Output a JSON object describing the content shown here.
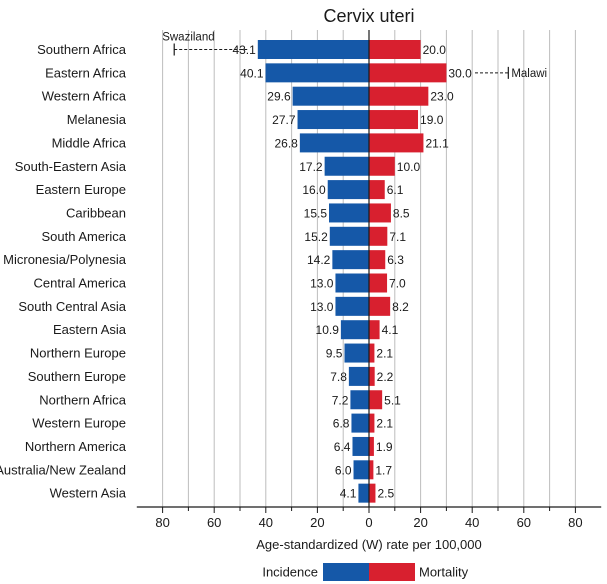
{
  "chart_data": {
    "type": "bar",
    "title": "Cervix uteri",
    "xlabel": "Age-standardized (W) rate per 100,000",
    "x_tick_labels": [
      "80",
      "60",
      "40",
      "20",
      "0",
      "20",
      "40",
      "60",
      "80"
    ],
    "xlim": [
      -90,
      90
    ],
    "grid": true,
    "categories": [
      "Southern Africa",
      "Eastern Africa",
      "Western Africa",
      "Melanesia",
      "Middle Africa",
      "South-Eastern Asia",
      "Eastern Europe",
      "Caribbean",
      "South America",
      "Micronesia/Polynesia",
      "Central America",
      "South Central Asia",
      "Eastern Asia",
      "Northern Europe",
      "Southern Europe",
      "Northern Africa",
      "Western Europe",
      "Northern America",
      "Australia/New Zealand",
      "Western Asia"
    ],
    "series": [
      {
        "name": "Incidence",
        "color": "#1558a8",
        "values": [
          43.1,
          40.1,
          29.6,
          27.7,
          26.8,
          17.2,
          16.0,
          15.5,
          15.2,
          14.2,
          13.0,
          13.0,
          10.9,
          9.5,
          7.8,
          7.2,
          6.8,
          6.4,
          6.0,
          4.1
        ],
        "value_labels": [
          "43.1",
          "40.1",
          "29.6",
          "27.7",
          "26.8",
          "17.2",
          "16.0",
          "15.5",
          "15.2",
          "14.2",
          "13.0",
          "13.0",
          "10.9",
          "9.5",
          "7.8",
          "7.2",
          "6.8",
          "6.4",
          "6.0",
          "4.1"
        ]
      },
      {
        "name": "Mortality",
        "color": "#d8202f",
        "values": [
          20.0,
          30.0,
          23.0,
          19.0,
          21.1,
          10.0,
          6.1,
          8.5,
          7.1,
          6.3,
          7.0,
          8.2,
          4.1,
          2.1,
          2.2,
          5.1,
          2.1,
          1.9,
          1.7,
          2.5
        ],
        "value_labels": [
          "20.0",
          "30.0",
          "23.0",
          "19.0",
          "21.1",
          "10.0",
          "6.1",
          "8.5",
          "7.1",
          "6.3",
          "7.0",
          "8.2",
          "4.1",
          "2.1",
          "2.2",
          "5.1",
          "2.1",
          "1.9",
          "1.7",
          "2.5"
        ]
      }
    ],
    "annotations": [
      {
        "label": "Swaziland",
        "series": "Incidence",
        "category_index": 0,
        "value": 75.5
      },
      {
        "label": "Malawi",
        "series": "Mortality",
        "category_index": 1,
        "value": 54.0
      }
    ],
    "legend": {
      "placement": "bottom",
      "items": [
        "Incidence",
        "Mortality"
      ]
    }
  }
}
